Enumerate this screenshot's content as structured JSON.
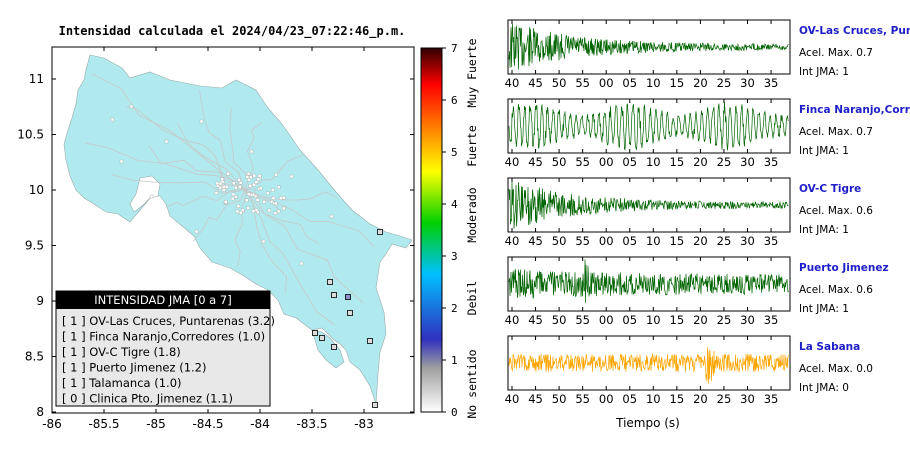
{
  "map": {
    "title": "Intensidad calculada el 2024/04/23_07:22:46_p.m.",
    "lon_ticks": [
      "-86",
      "-85.5",
      "-85",
      "-84.5",
      "-84",
      "-83.5",
      "-83"
    ],
    "lat_ticks": [
      "8",
      "8.5",
      "9",
      "9.5",
      "10",
      "10.5",
      "11"
    ],
    "legend": {
      "title": "INTENSIDAD JMA [0 a 7]",
      "entries": [
        "[ 1 ]  OV-Las Cruces, Puntarenas (3.2)",
        "[ 1 ]  Finca Naranjo,Corredores (1.0)",
        "[ 1 ]  OV-C Tigre (1.8)",
        "[ 1 ]  Puerto Jimenez (1.2)",
        "[ 1 ]  Talamanca (1.0)",
        "[ 0 ]  Clinica Pto. Jimenez (1.1)"
      ]
    }
  },
  "colorbar": {
    "ticks": [
      "0",
      "1",
      "2",
      "3",
      "4",
      "5",
      "6",
      "7"
    ],
    "labels": [
      "No sentido",
      "Debil",
      "Moderado",
      "Fuerte",
      "Muy Fuerte"
    ],
    "colors": [
      "#ffffff",
      "#a0a0a0",
      "#3030c0",
      "#00c0ff",
      "#00d000",
      "#ffff00",
      "#ff8000",
      "#ff0000",
      "#300000"
    ]
  },
  "chart_data": {
    "type": "line",
    "xlabel": "Tiempo (s)",
    "x_ticks": [
      "40",
      "45",
      "50",
      "55",
      "00",
      "05",
      "10",
      "15",
      "20",
      "25",
      "30",
      "35"
    ],
    "traces": [
      {
        "name": "OV-Las Cruces, Puntarenas",
        "accel_label": "Acel. Max. 0.7",
        "int_label": "Int JMA: 1",
        "color": "#006400",
        "pattern": "decay"
      },
      {
        "name": "Finca Naranjo,Corredores",
        "accel_label": "Acel. Max. 0.7",
        "int_label": "Int JMA: 1",
        "color": "#006400",
        "pattern": "sustained"
      },
      {
        "name": "OV-C Tigre",
        "accel_label": "Acel. Max. 0.6",
        "int_label": "Int JMA: 1",
        "color": "#006400",
        "pattern": "decay"
      },
      {
        "name": "Puerto Jimenez",
        "accel_label": "Acel. Max. 0.6",
        "int_label": "Int JMA: 1",
        "color": "#006400",
        "pattern": "mixed"
      },
      {
        "name": "La Sabana",
        "accel_label": "Acel. Max. 0.0",
        "int_label": "Int JMA: 0",
        "color": "#ffa500",
        "pattern": "noise"
      }
    ]
  }
}
